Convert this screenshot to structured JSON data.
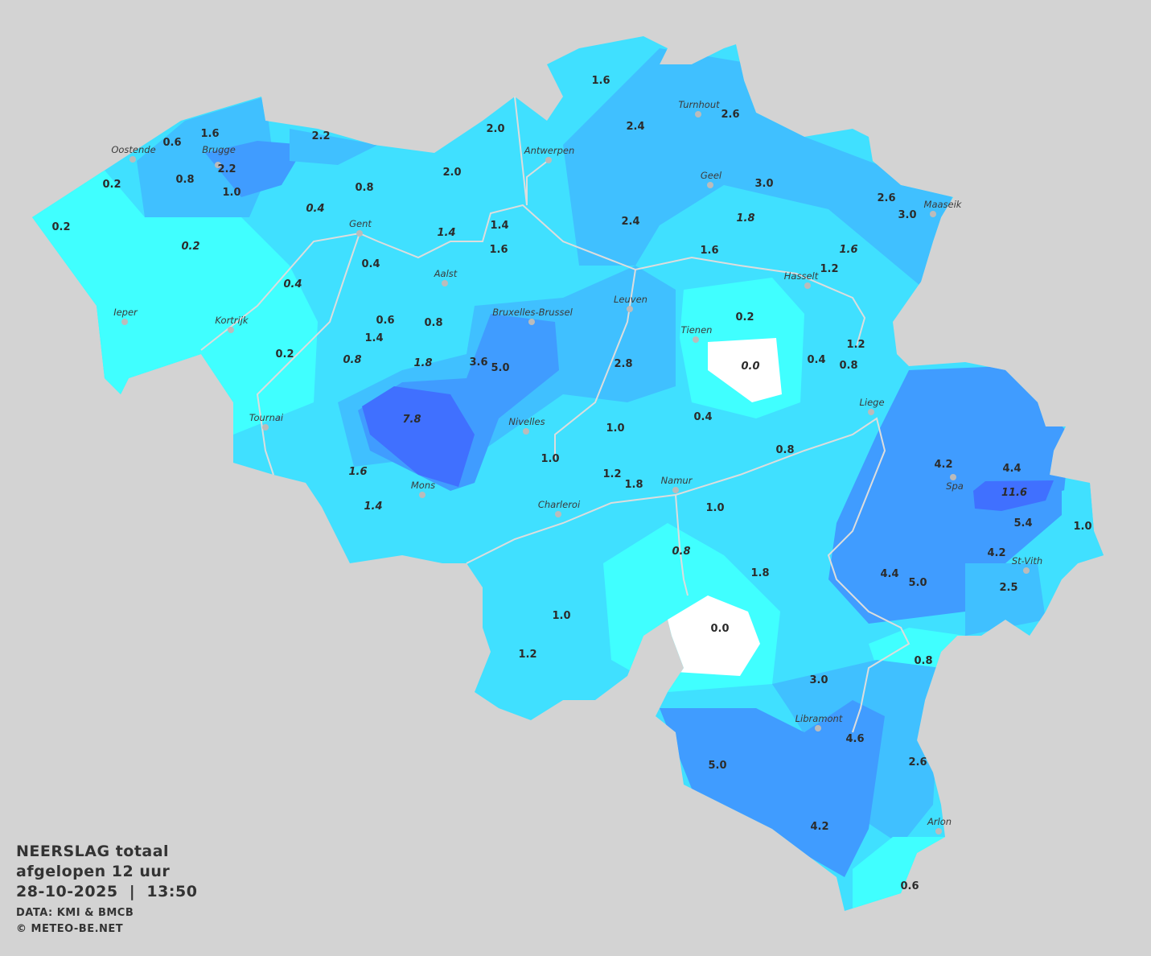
{
  "legend": {
    "title_line1": "NEERSLAG totaal",
    "title_line2": "afgelopen 12 uur",
    "datetime": "28-10-2025  |  13:50",
    "source": "DATA: KMI & BMCB",
    "copyright": "© METEO-BE.NET"
  },
  "colors": {
    "background": "#d3d3d3",
    "level_0": "#ffffff",
    "level_1": "#40ffff",
    "level_2": "#40e0ff",
    "level_3": "#40c0ff",
    "level_4": "#409cff",
    "level_5": "#4070ff",
    "river": "#dddddd"
  },
  "unit": "mm",
  "cities": [
    "Turnhout",
    "Antwerpen",
    "Oostende",
    "Brugge",
    "Geel",
    "Maaseik",
    "Gent",
    "Hasselt",
    "Aalst",
    "Leuven",
    "Ieper",
    "Kortrijk",
    "Bruxelles-Brussel",
    "Tienen",
    "Liege",
    "Tournai",
    "Nivelles",
    "Spa",
    "Namur",
    "Mons",
    "Charleroi",
    "St-Vith",
    "Libramont",
    "Arlon"
  ],
  "values": [
    "1.6",
    "2.4",
    "2.6",
    "2.0",
    "2.0",
    "1.6",
    "0.6",
    "2.2",
    "2.2",
    "0.2",
    "0.8",
    "1.0",
    "0.8",
    "0.4",
    "3.0",
    "2.6",
    "3.0",
    "0.2",
    "2.4",
    "1.8",
    "0.2",
    "1.4",
    "1.4",
    "1.6",
    "1.6",
    "1.6",
    "1.2",
    "0.4",
    "0.4",
    "0.2",
    "0.6",
    "0.8",
    "1.4",
    "1.2",
    "0.2",
    "0.8",
    "1.8",
    "3.6",
    "5.0",
    "2.8",
    "0.0",
    "0.4",
    "0.8",
    "0.4",
    "7.8",
    "1.0",
    "1.0",
    "0.8",
    "4.2",
    "4.4",
    "1.6",
    "1.2",
    "1.8",
    "11.6",
    "1.4",
    "1.0",
    "5.4",
    "1.0",
    "0.8",
    "4.2",
    "4.4",
    "5.0",
    "1.8",
    "2.5",
    "1.0",
    "0.0",
    "1.2",
    "0.8",
    "3.0",
    "4.6",
    "2.6",
    "5.0",
    "4.2",
    "0.6"
  ]
}
